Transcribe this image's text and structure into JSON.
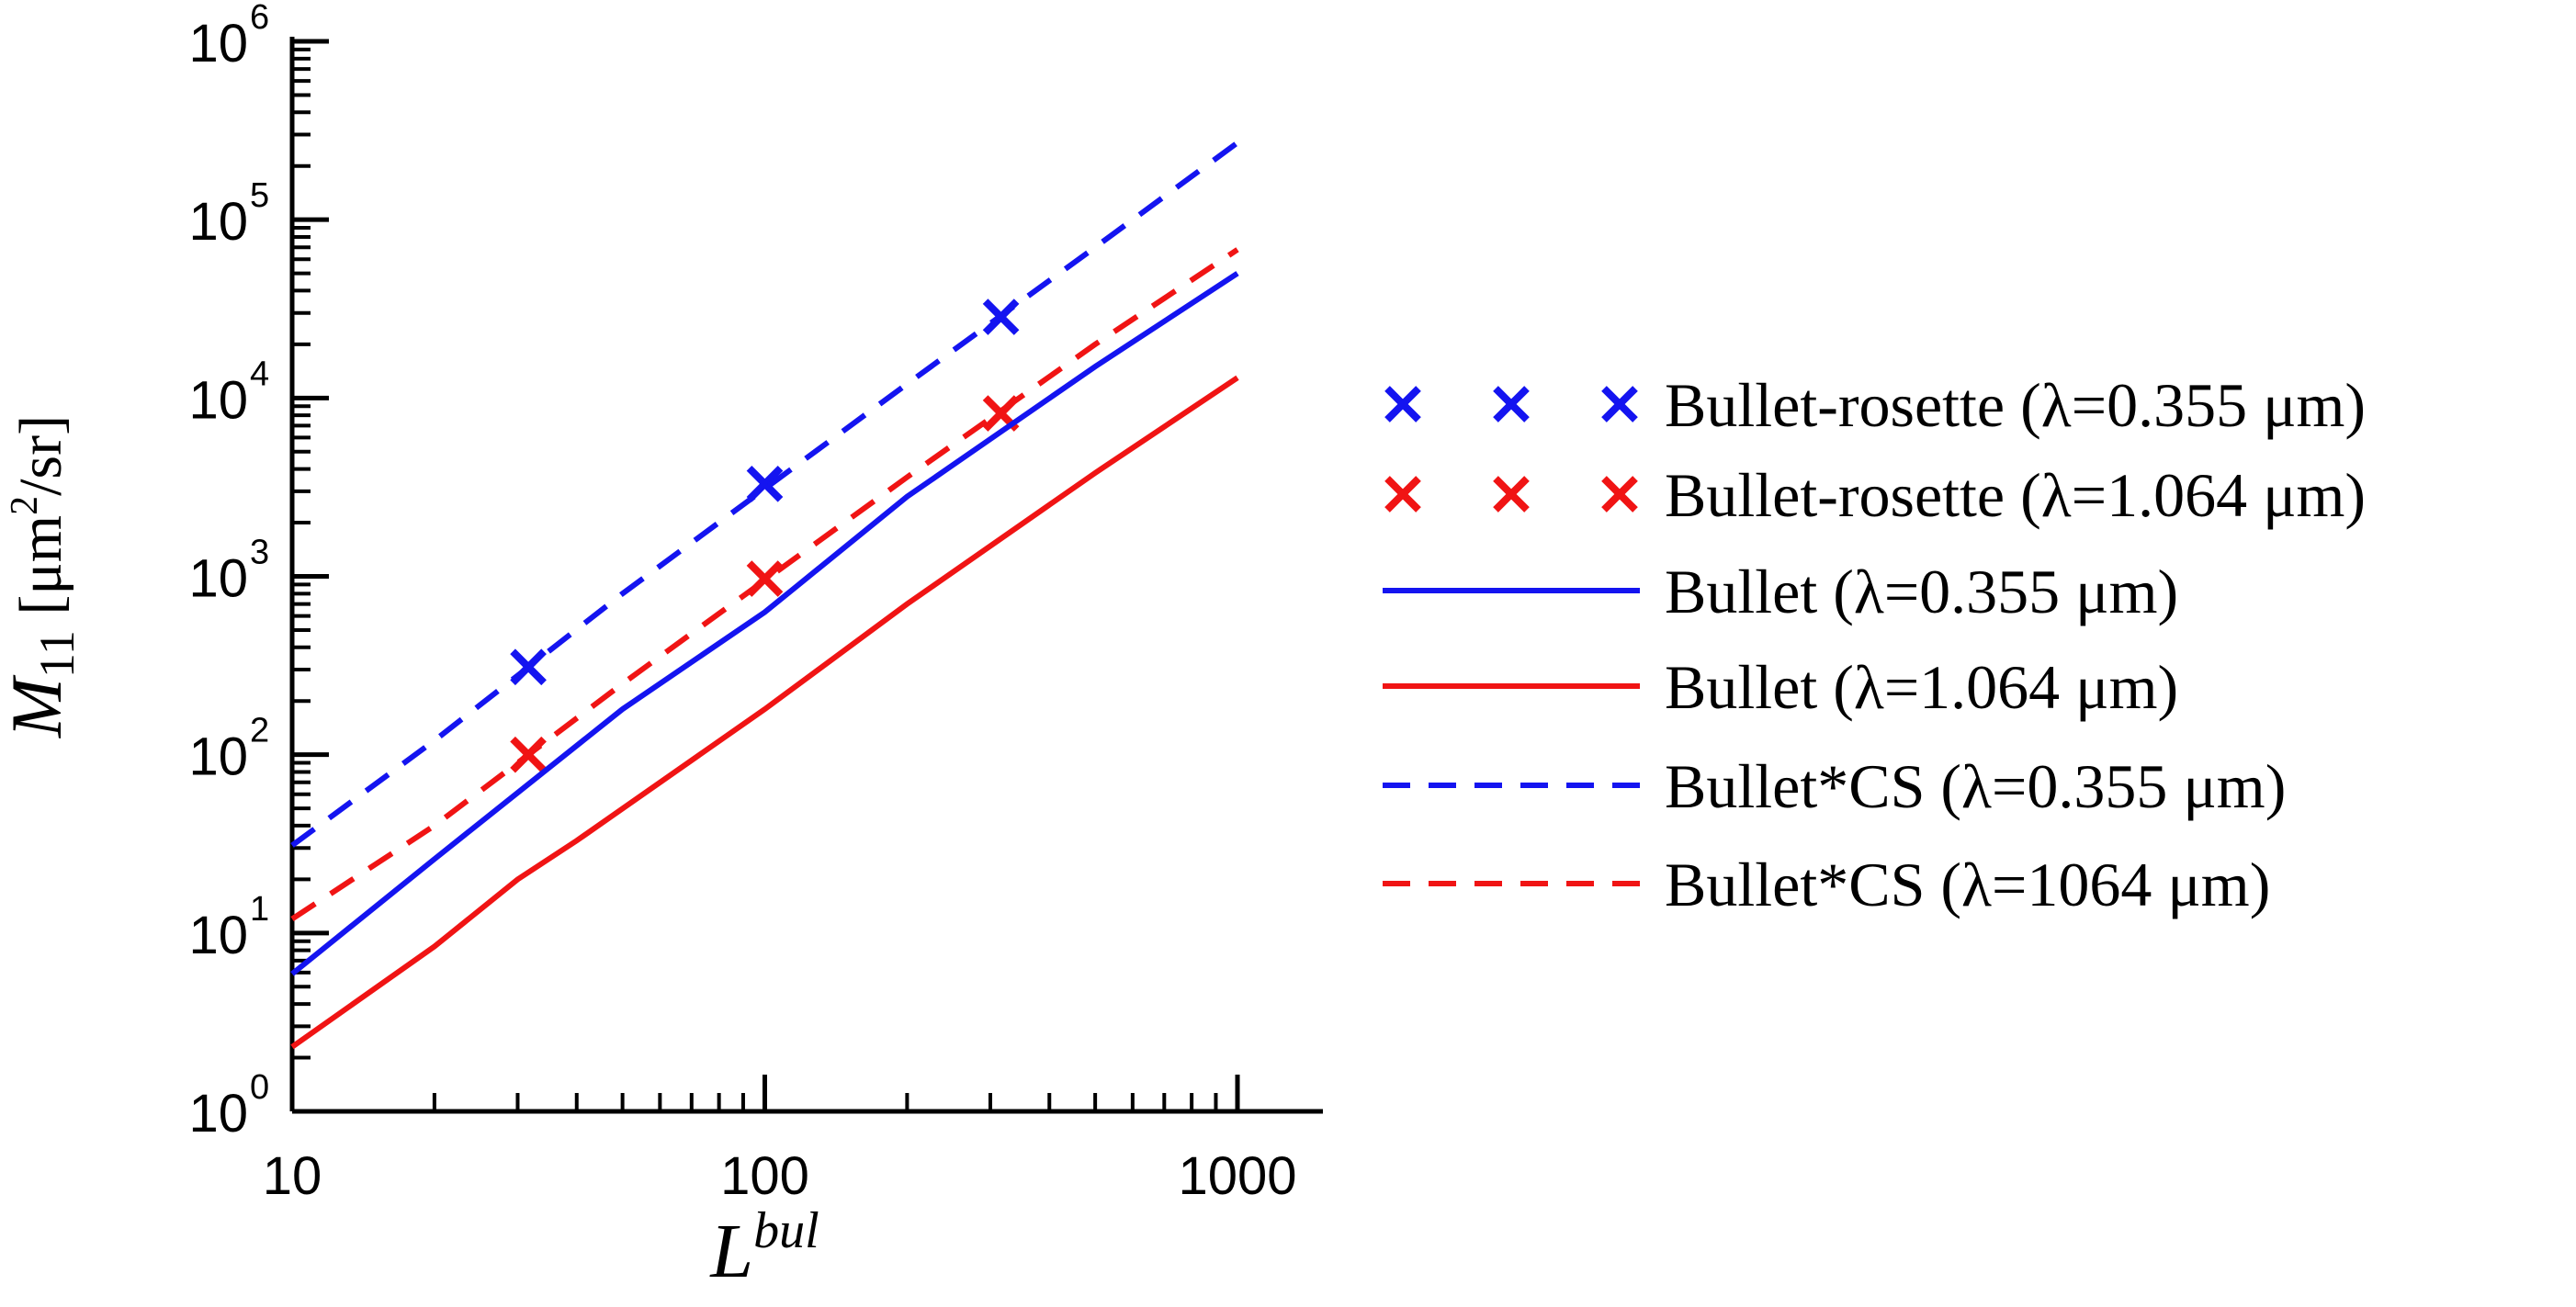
{
  "chart_data": {
    "type": "line",
    "x_scale": "log",
    "y_scale": "log",
    "xlim": [
      10,
      1000
    ],
    "ylim": [
      1,
      1000000
    ],
    "x_ticks": [
      {
        "value": 10,
        "label": "10"
      },
      {
        "value": 100,
        "label": "100"
      },
      {
        "value": 1000,
        "label": "1000"
      }
    ],
    "y_ticks": [
      {
        "value": 1,
        "base": "10",
        "exp": "0"
      },
      {
        "value": 10,
        "base": "10",
        "exp": "1"
      },
      {
        "value": 100,
        "base": "10",
        "exp": "2"
      },
      {
        "value": 1000,
        "base": "10",
        "exp": "3"
      },
      {
        "value": 10000,
        "base": "10",
        "exp": "4"
      },
      {
        "value": 100000,
        "base": "10",
        "exp": "5"
      },
      {
        "value": 1000000,
        "base": "10",
        "exp": "6"
      }
    ],
    "xlabel": {
      "main": "L",
      "sup": "bul"
    },
    "ylabel": {
      "main": "M",
      "sub": "11",
      "unit_pre": " [μm",
      "unit_sup": "2",
      "unit_post": "/sr]"
    },
    "legend_position": "right",
    "series": [
      {
        "name": "Bullet-rosette (λ=0.355 μm)",
        "style": "marker-x",
        "color": "#1414f0",
        "points": [
          [
            31.6,
            310
          ],
          [
            100,
            3300
          ],
          [
            316,
            28500
          ]
        ]
      },
      {
        "name": "Bullet-rosette (λ=1.064 μm)",
        "style": "marker-x",
        "color": "#f01414",
        "points": [
          [
            31.6,
            100
          ],
          [
            100,
            970
          ],
          [
            316,
            8200
          ]
        ]
      },
      {
        "name": "Bullet (λ=0.355 μm)",
        "style": "solid",
        "color": "#1414f0",
        "points": [
          [
            10,
            5.9
          ],
          [
            20,
            26
          ],
          [
            50,
            180
          ],
          [
            100,
            630
          ],
          [
            200,
            2800
          ],
          [
            500,
            15000
          ],
          [
            1000,
            50000
          ]
        ]
      },
      {
        "name": "Bullet (λ=1.064 μm)",
        "style": "solid",
        "color": "#f01414",
        "points": [
          [
            10,
            2.3
          ],
          [
            20,
            8.4
          ],
          [
            30,
            20
          ],
          [
            40,
            33
          ],
          [
            100,
            180
          ],
          [
            200,
            700
          ],
          [
            500,
            3800
          ],
          [
            1000,
            13000
          ]
        ]
      },
      {
        "name": "Bullet*CS (λ=0.355 μm)",
        "style": "dashed",
        "color": "#1414f0",
        "points": [
          [
            10,
            31
          ],
          [
            20,
            120
          ],
          [
            50,
            800
          ],
          [
            100,
            3100
          ],
          [
            200,
            12000
          ],
          [
            500,
            70000
          ],
          [
            1000,
            270000
          ]
        ]
      },
      {
        "name": "Bullet*CS (λ=1064 μm)",
        "style": "dashed",
        "color": "#f01414",
        "points": [
          [
            10,
            12
          ],
          [
            20,
            40
          ],
          [
            50,
            250
          ],
          [
            100,
            950
          ],
          [
            200,
            3600
          ],
          [
            500,
            20000
          ],
          [
            1000,
            68000
          ]
        ]
      }
    ]
  }
}
